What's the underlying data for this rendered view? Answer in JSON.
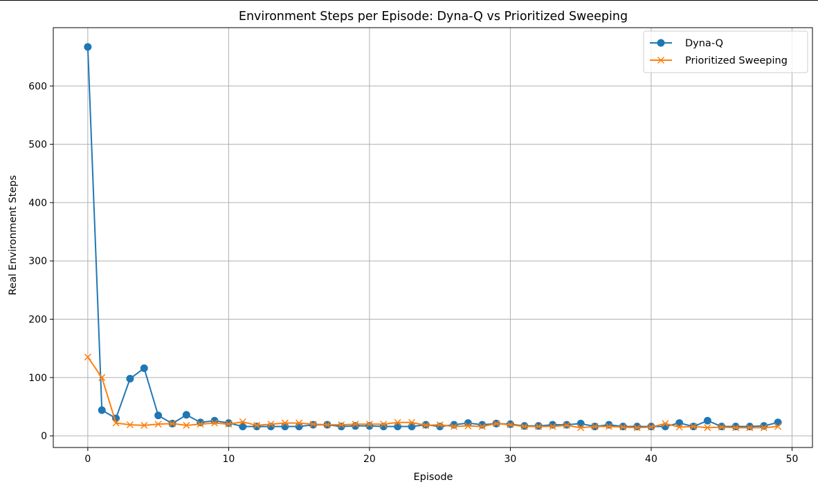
{
  "chart_data": {
    "type": "line",
    "title": "Environment Steps per Episode: Dyna-Q vs Prioritized Sweeping",
    "xlabel": "Episode",
    "ylabel": "Real Environment Steps",
    "xlim": [
      -2.45,
      51.45
    ],
    "ylim": [
      -20,
      700
    ],
    "xticks": [
      0,
      10,
      20,
      30,
      40,
      50
    ],
    "yticks": [
      0,
      100,
      200,
      300,
      400,
      500,
      600
    ],
    "grid": true,
    "legend": "top-right",
    "x": [
      0,
      1,
      2,
      3,
      4,
      5,
      6,
      7,
      8,
      9,
      10,
      11,
      12,
      13,
      14,
      15,
      16,
      17,
      18,
      19,
      20,
      21,
      22,
      23,
      24,
      25,
      26,
      27,
      28,
      29,
      30,
      31,
      32,
      33,
      34,
      35,
      36,
      37,
      38,
      39,
      40,
      41,
      42,
      43,
      44,
      45,
      46,
      47,
      48,
      49
    ],
    "series": [
      {
        "name": "Dyna-Q",
        "color": "#1f77b4",
        "marker": "circle",
        "values": [
          667,
          44,
          30,
          98,
          116,
          35,
          21,
          36,
          23,
          26,
          22,
          16,
          16,
          16,
          16,
          16,
          19,
          19,
          16,
          17,
          17,
          16,
          16,
          16,
          19,
          16,
          19,
          22,
          19,
          21,
          20,
          17,
          17,
          19,
          19,
          21,
          16,
          19,
          16,
          16,
          16,
          16,
          22,
          16,
          26,
          16,
          16,
          16,
          17,
          23
        ]
      },
      {
        "name": "Prioritized Sweeping",
        "color": "#ff7f0e",
        "marker": "x",
        "values": [
          135,
          100,
          22,
          19,
          18,
          20,
          21,
          18,
          20,
          22,
          20,
          24,
          18,
          20,
          22,
          22,
          20,
          19,
          19,
          20,
          20,
          20,
          23,
          23,
          18,
          19,
          16,
          17,
          16,
          21,
          19,
          16,
          16,
          16,
          18,
          14,
          16,
          16,
          15,
          14,
          15,
          21,
          15,
          16,
          14,
          15,
          14,
          14,
          14,
          16
        ]
      }
    ]
  }
}
